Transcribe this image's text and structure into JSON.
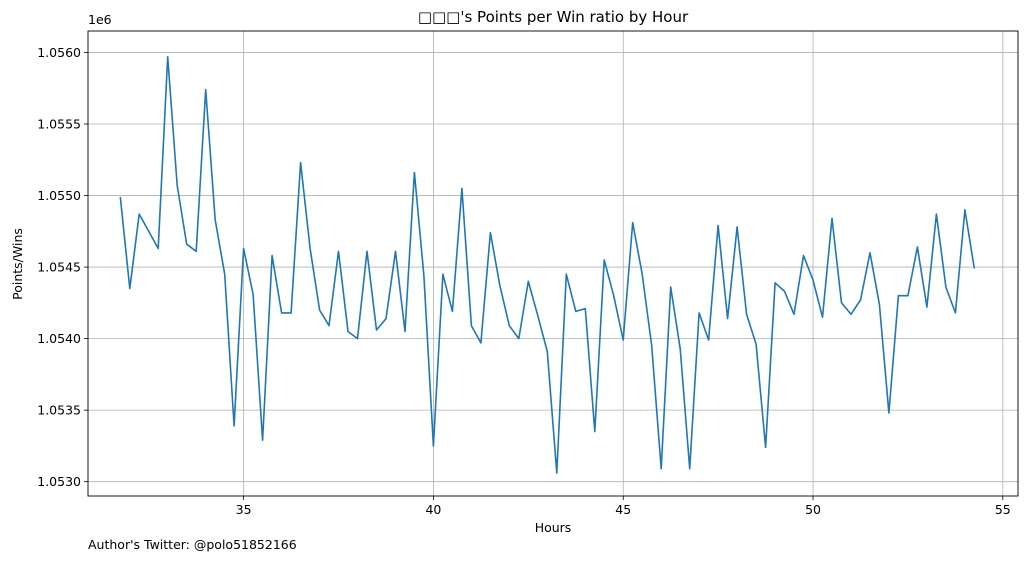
{
  "chart_data": {
    "type": "line",
    "title": "□□□'s Points per Win ratio by Hour",
    "xlabel": "Hours",
    "ylabel": "Points/Wins",
    "y_offset_label": "1e6",
    "xlim": [
      30.9,
      55.4
    ],
    "ylim": [
      1052.9,
      1056.15
    ],
    "x_ticks": [
      35,
      40,
      45,
      50,
      55
    ],
    "x_tick_labels": [
      "35",
      "40",
      "45",
      "50",
      "55"
    ],
    "y_ticks": [
      1053.0,
      1053.5,
      1054.0,
      1054.5,
      1055.0,
      1055.5,
      1056.0
    ],
    "y_tick_labels": [
      "1.0530",
      "1.0535",
      "1.0540",
      "1.0545",
      "1.0550",
      "1.0555",
      "1.0560"
    ],
    "grid": true,
    "series_color": "#1f77b4",
    "series": [
      {
        "x": [
          31.75,
          32.0,
          32.25,
          32.5,
          32.75,
          33.0,
          33.25,
          33.5,
          33.75,
          34.0,
          34.25,
          34.5,
          34.75,
          35.0,
          35.25,
          35.5,
          35.75,
          36.0,
          36.25,
          36.5,
          36.75,
          37.0,
          37.25,
          37.5,
          37.75,
          38.0,
          38.25,
          38.5,
          38.75,
          39.0,
          39.25,
          39.5,
          39.75,
          40.0,
          40.25,
          40.5,
          40.75,
          41.0,
          41.25,
          41.5,
          41.75,
          42.0,
          42.25,
          42.5,
          42.75,
          43.0,
          43.25,
          43.5,
          43.75,
          44.0,
          44.25,
          44.5,
          44.75,
          45.0,
          45.25,
          45.5,
          45.75,
          46.0,
          46.25,
          46.5,
          46.75,
          47.0,
          47.25,
          47.5,
          47.75,
          48.0,
          48.25,
          48.5,
          48.75,
          49.0,
          49.25,
          49.5,
          49.75,
          50.0,
          50.25,
          50.5,
          50.75,
          51.0,
          51.25,
          51.5,
          51.75,
          52.0,
          52.25,
          52.5,
          52.75,
          53.0,
          53.25,
          53.5,
          53.75,
          54.0,
          54.25
        ],
        "values": [
          1054.99,
          1054.35,
          1054.87,
          1054.75,
          1054.63,
          1055.97,
          1055.07,
          1054.66,
          1054.61,
          1055.74,
          1054.83,
          1054.45,
          1053.39,
          1054.63,
          1054.31,
          1053.29,
          1054.58,
          1054.18,
          1054.18,
          1055.23,
          1054.63,
          1054.2,
          1054.09,
          1054.61,
          1054.05,
          1054.0,
          1054.61,
          1054.06,
          1054.14,
          1054.61,
          1054.05,
          1055.16,
          1054.44,
          1053.25,
          1054.45,
          1054.19,
          1055.05,
          1054.09,
          1053.97,
          1054.74,
          1054.37,
          1054.09,
          1054.0,
          1054.4,
          1054.16,
          1053.91,
          1053.06,
          1054.45,
          1054.19,
          1054.21,
          1053.35,
          1054.55,
          1054.3,
          1053.99,
          1054.81,
          1054.45,
          1053.95,
          1053.09,
          1054.36,
          1053.93,
          1053.09,
          1054.18,
          1053.99,
          1054.79,
          1054.14,
          1054.78,
          1054.17,
          1053.96,
          1053.24,
          1054.39,
          1054.33,
          1054.17,
          1054.58,
          1054.41,
          1054.15,
          1054.84,
          1054.25,
          1054.17,
          1054.27,
          1054.6,
          1054.24,
          1053.48,
          1054.3,
          1054.3,
          1054.64,
          1054.22,
          1054.87,
          1054.36,
          1054.18,
          1054.9,
          1054.49
        ]
      }
    ]
  },
  "footnote": "Author's Twitter: @polo51852166"
}
